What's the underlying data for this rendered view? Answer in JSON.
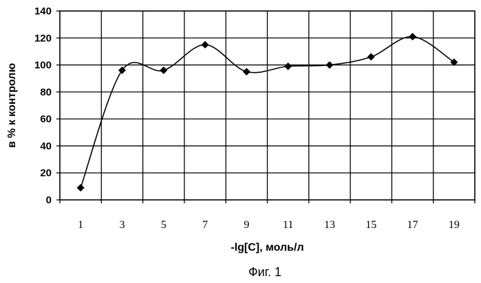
{
  "chart_data": {
    "type": "line",
    "x": [
      1,
      3,
      5,
      7,
      9,
      11,
      13,
      15,
      17,
      19
    ],
    "series": [
      {
        "values": [
          9,
          96,
          96,
          115,
          95,
          99,
          100,
          106,
          121,
          102
        ]
      }
    ],
    "xlabel": "-lg[C], моль/л",
    "ylabel": "в % к контролю",
    "ylim": [
      0,
      140
    ],
    "yticks": [
      0,
      20,
      40,
      60,
      80,
      100,
      120,
      140
    ],
    "xticks": [
      "1",
      "3",
      "5",
      "7",
      "9",
      "11",
      "13",
      "15",
      "17",
      "19"
    ],
    "grid": true,
    "legend": "none",
    "marker": "diamond",
    "line_style": "smoothed",
    "color": "#000000"
  },
  "caption": "Фиг. 1"
}
